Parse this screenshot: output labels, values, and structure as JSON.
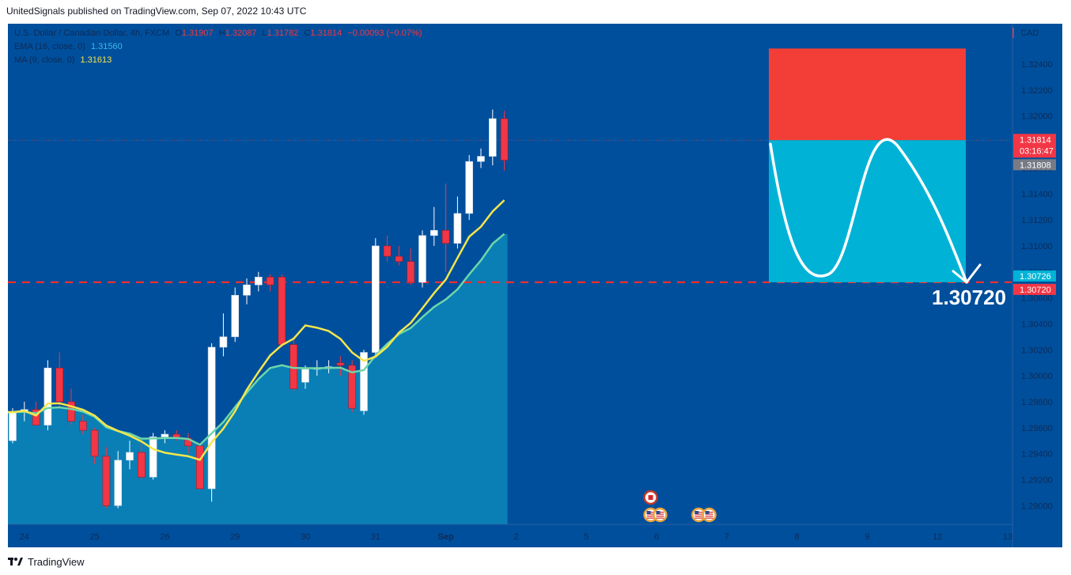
{
  "header": {
    "published_text": "UnitedSignals published on TradingView.com, Sep 07, 2022 10:43 UTC"
  },
  "legend": {
    "symbol": "U.S. Dollar / Canadian Dollar, 4h, FXCM",
    "ohlc": [
      {
        "k": "O",
        "v": "1.31907"
      },
      {
        "k": "H",
        "v": "1.32087"
      },
      {
        "k": "L",
        "v": "1.31782"
      },
      {
        "k": "C",
        "v": "1.31814"
      }
    ],
    "change": "−0.00093 (−0.07%)",
    "ema_label": "EMA (16, close, 0)",
    "ema_value": "1.31560",
    "ma_label": "MA (9, close, 0)",
    "ma_value": "1.31613"
  },
  "currency": "CAD",
  "footer": {
    "brand": "TradingView"
  },
  "colors": {
    "bg": "#004f9c",
    "area": "#0a84b8",
    "up": "#ffffff",
    "down": "#f23645",
    "ma": "#f5e64b",
    "ema": "#6fd6a8",
    "target": "#00b3d6",
    "stop": "#f23e36"
  },
  "chart_data": {
    "type": "candlestick",
    "timeframe": "4h",
    "ylim": [
      1.2888,
      1.3265
    ],
    "y_ticks": [
      "1.32400",
      "1.32200",
      "1.32000",
      "1.31800",
      "1.31600",
      "1.31400",
      "1.31200",
      "1.31000",
      "1.30800",
      "1.30600",
      "1.30400",
      "1.30200",
      "1.30000",
      "1.29800",
      "1.29600",
      "1.29400",
      "1.29200",
      "1.29000"
    ],
    "x_labels": [
      {
        "label": "24",
        "index": 1
      },
      {
        "label": "25",
        "index": 7
      },
      {
        "label": "26",
        "index": 13
      },
      {
        "label": "29",
        "index": 19
      },
      {
        "label": "30",
        "index": 25
      },
      {
        "label": "31",
        "index": 31
      },
      {
        "label": "Sep",
        "index": 37
      },
      {
        "label": "2",
        "index": 43
      },
      {
        "label": "5",
        "index": 49
      },
      {
        "label": "6",
        "index": 55
      },
      {
        "label": "7",
        "index": 61
      },
      {
        "label": "8",
        "index": 67
      },
      {
        "label": "9",
        "index": 73
      },
      {
        "label": "12",
        "index": 79
      },
      {
        "label": "13",
        "index": 85
      }
    ],
    "candles": [
      [
        1.295,
        1.2975,
        1.2948,
        1.2972
      ],
      [
        1.2972,
        1.298,
        1.2965,
        1.2974
      ],
      [
        1.2974,
        1.298,
        1.2962,
        1.2962
      ],
      [
        1.2962,
        1.3012,
        1.2958,
        1.3006
      ],
      [
        1.3006,
        1.3018,
        1.2975,
        1.298
      ],
      [
        1.298,
        1.299,
        1.2962,
        1.2965
      ],
      [
        1.2965,
        1.297,
        1.2955,
        1.2958
      ],
      [
        1.2958,
        1.296,
        1.2932,
        1.2938
      ],
      [
        1.2938,
        1.2945,
        1.2898,
        1.29
      ],
      [
        1.29,
        1.2942,
        1.2898,
        1.2935
      ],
      [
        1.2935,
        1.295,
        1.2928,
        1.2941
      ],
      [
        1.2941,
        1.295,
        1.292,
        1.2922
      ],
      [
        1.2922,
        1.2956,
        1.292,
        1.2953
      ],
      [
        1.2953,
        1.2958,
        1.2948,
        1.2955
      ],
      [
        1.2955,
        1.2958,
        1.295,
        1.2952
      ],
      [
        1.2952,
        1.2956,
        1.294,
        1.2946
      ],
      [
        1.2946,
        1.2948,
        1.2912,
        1.2913
      ],
      [
        1.2913,
        1.3025,
        1.2903,
        1.3022
      ],
      [
        1.3022,
        1.3048,
        1.3015,
        1.303
      ],
      [
        1.303,
        1.3068,
        1.3026,
        1.3062
      ],
      [
        1.3062,
        1.3075,
        1.3055,
        1.307
      ],
      [
        1.307,
        1.308,
        1.3065,
        1.3076
      ],
      [
        1.3076,
        1.3078,
        1.3065,
        1.307
      ],
      [
        1.3076,
        1.3078,
        1.3022,
        1.3024
      ],
      [
        1.3024,
        1.303,
        1.2988,
        1.299
      ],
      [
        1.2995,
        1.3008,
        1.299,
        1.3005
      ],
      [
        1.3005,
        1.3012,
        1.3,
        1.3006
      ],
      [
        1.3006,
        1.3012,
        1.3002,
        1.3007
      ],
      [
        1.301,
        1.3015,
        1.3,
        1.3008
      ],
      [
        1.3008,
        1.3012,
        1.2972,
        1.2975
      ],
      [
        1.2973,
        1.302,
        1.297,
        1.3018
      ],
      [
        1.3018,
        1.3106,
        1.3015,
        1.31
      ],
      [
        1.31,
        1.3108,
        1.3088,
        1.3092
      ],
      [
        1.3092,
        1.31,
        1.3085,
        1.3088
      ],
      [
        1.3088,
        1.3098,
        1.307,
        1.3072
      ],
      [
        1.3072,
        1.3112,
        1.3068,
        1.3108
      ],
      [
        1.3108,
        1.313,
        1.31,
        1.3112
      ],
      [
        1.3112,
        1.3148,
        1.308,
        1.3102
      ],
      [
        1.3102,
        1.3138,
        1.3098,
        1.3125
      ],
      [
        1.3125,
        1.317,
        1.312,
        1.3165
      ],
      [
        1.3165,
        1.3175,
        1.316,
        1.3169
      ],
      [
        1.3169,
        1.3205,
        1.3162,
        1.3198
      ],
      [
        1.3198,
        1.3204,
        1.3158,
        1.3166
      ]
    ],
    "ema": {
      "name": "EMA (16, close, 0)",
      "value": 1.3156
    },
    "ma": {
      "name": "MA (9, close, 0)",
      "value": 1.31613
    },
    "price_labels": [
      {
        "value": 1.31814,
        "text": "1.31814",
        "sub": "03:16:47",
        "color": "#f23645"
      },
      {
        "value": 1.31808,
        "text": "1.31808",
        "color": "#787b86"
      },
      {
        "value": 1.30726,
        "text": "1.30726",
        "color": "#00b3d6"
      },
      {
        "value": 1.3072,
        "text": "1.30720",
        "color": "#f23645"
      }
    ],
    "support_level": 1.3072,
    "target_label": "1.30720",
    "position": {
      "stop_top": 1.3252,
      "entry": 1.31814,
      "target": 1.3072
    },
    "event_flags": [
      {
        "country": "CA",
        "index": 54.5,
        "row": 0
      },
      {
        "country": "US",
        "index": 54.5,
        "row": 1
      },
      {
        "country": "US",
        "index": 55.3,
        "row": 1
      },
      {
        "country": "US",
        "index": 58.6,
        "row": 1
      },
      {
        "country": "US",
        "index": 59.5,
        "row": 1
      }
    ]
  }
}
